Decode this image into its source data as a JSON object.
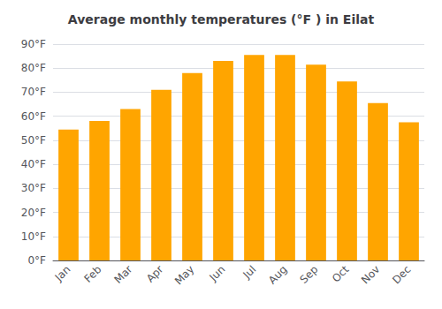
{
  "chart_data": {
    "type": "bar",
    "title": "Average monthly temperatures (°F ) in Eilat",
    "categories": [
      "Jan",
      "Feb",
      "Mar",
      "Apr",
      "May",
      "Jun",
      "Jul",
      "Aug",
      "Sep",
      "Oct",
      "Nov",
      "Dec"
    ],
    "values": [
      54.5,
      58.0,
      63.0,
      71.0,
      78.0,
      83.0,
      85.5,
      85.5,
      81.5,
      74.5,
      65.5,
      57.5
    ],
    "color": "#FFA500",
    "ylim": [
      0,
      90
    ],
    "yticks": [
      {
        "value": 0,
        "label": "0°F"
      },
      {
        "value": 10,
        "label": "10°F"
      },
      {
        "value": 20,
        "label": "20°F"
      },
      {
        "value": 30,
        "label": "30°F"
      },
      {
        "value": 40,
        "label": "40°F"
      },
      {
        "value": 50,
        "label": "50°F"
      },
      {
        "value": 60,
        "label": "60°F"
      },
      {
        "value": 70,
        "label": "70°F"
      },
      {
        "value": 80,
        "label": "80°F"
      },
      {
        "value": 90,
        "label": "90°F"
      }
    ],
    "grid": true
  }
}
